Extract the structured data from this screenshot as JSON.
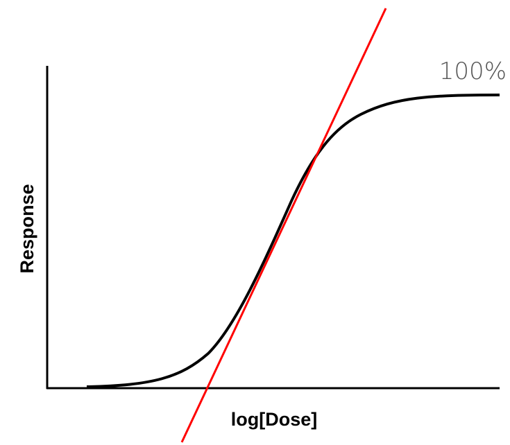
{
  "labels": {
    "top_right": "100%",
    "y_axis": "Response",
    "x_axis": "log[Dose]"
  }
}
